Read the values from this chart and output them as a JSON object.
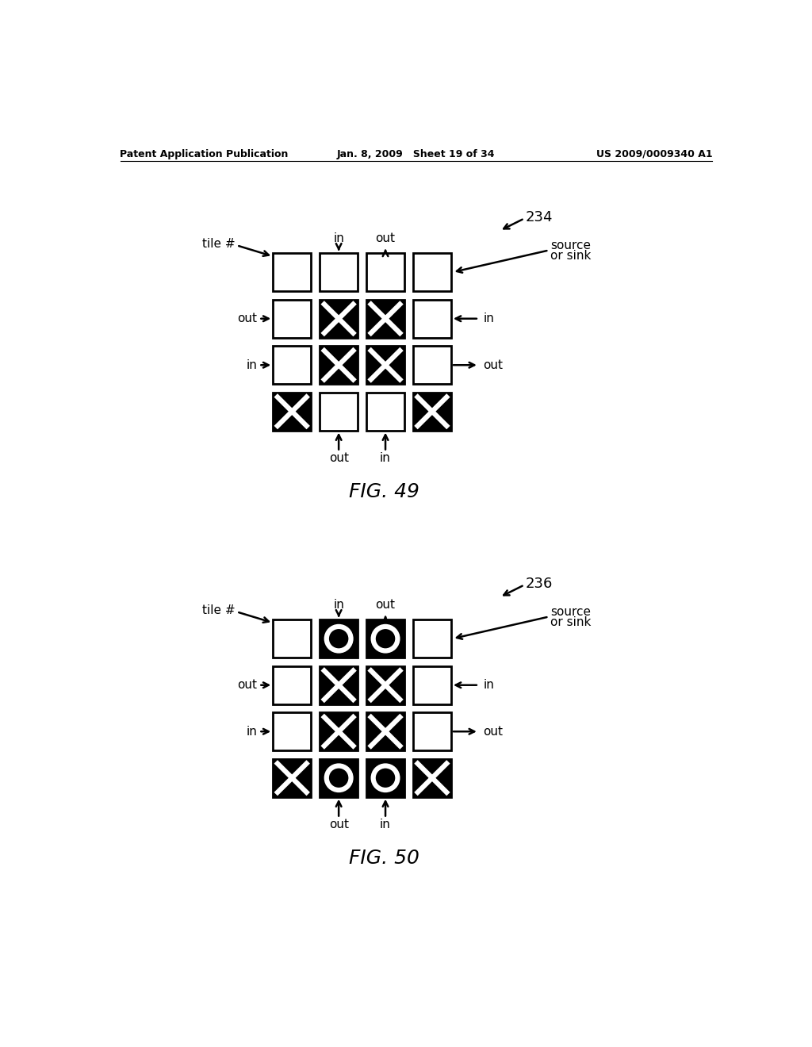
{
  "header_left": "Patent Application Publication",
  "header_mid": "Jan. 8, 2009   Sheet 19 of 34",
  "header_right": "US 2009/0009340 A1",
  "fig49_label": "234",
  "fig50_label": "236",
  "fig49_caption": "FIG. 49",
  "fig50_caption": "FIG. 50",
  "bg_color": "#ffffff"
}
